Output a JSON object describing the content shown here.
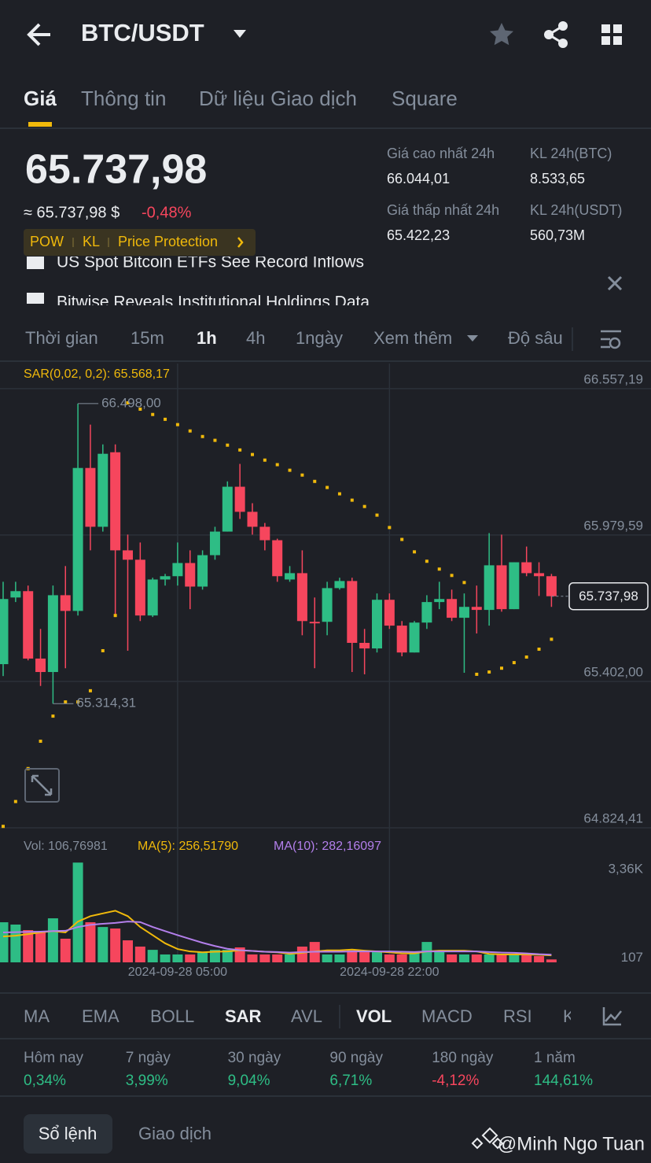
{
  "header": {
    "pair": "BTC/USDT"
  },
  "tabs": [
    {
      "label": "Giá",
      "active": true
    },
    {
      "label": "Thông tin",
      "active": false
    },
    {
      "label": "Dữ liệu Giao dịch",
      "active": false
    },
    {
      "label": "Square",
      "active": false
    }
  ],
  "price": {
    "last": "65.737,98",
    "fiat": "≈ 65.737,98 $",
    "change": "-0,48%"
  },
  "tags": [
    "POW",
    "KL",
    "Price Protection"
  ],
  "stats": [
    {
      "label": "Giá cao nhất 24h",
      "value": "66.044,01"
    },
    {
      "label": "KL 24h(BTC)",
      "value": "8.533,65"
    },
    {
      "label": "Giá thấp nhất 24h",
      "value": "65.422,23"
    },
    {
      "label": "KL 24h(USDT)",
      "value": "560,73M"
    }
  ],
  "news": [
    "US Spot Bitcoin ETFs See Record Inflows",
    "Bitwise Reveals Institutional Holdings Data"
  ],
  "intervals": [
    {
      "label": "Thời gian",
      "active": false
    },
    {
      "label": "15m",
      "active": false
    },
    {
      "label": "1h",
      "active": true
    },
    {
      "label": "4h",
      "active": false
    },
    {
      "label": "1ngày",
      "active": false
    },
    {
      "label": "Xem thêm",
      "active": false
    },
    {
      "label": "Độ sâu",
      "active": false
    }
  ],
  "chart_data": {
    "type": "candlestick",
    "indicator_label": "SAR(0,02, 0,2): 65.568,17",
    "up_color": "#2ebd85",
    "down_color": "#f6465d",
    "categories": [
      null,
      null,
      null,
      null,
      null,
      null,
      null,
      null,
      null,
      null,
      null,
      null,
      null,
      null,
      "2024-09-28 05:00",
      null,
      null,
      null,
      null,
      null,
      null,
      null,
      null,
      null,
      null,
      null,
      null,
      null,
      null,
      null,
      null,
      "2024-09-28 22:00",
      null,
      null,
      null,
      null,
      null,
      null,
      null,
      null,
      null,
      null,
      null,
      null,
      null
    ],
    "open": [
      65470,
      65733,
      65758,
      65492,
      65439,
      65742,
      65680,
      66244,
      66012,
      66306,
      65919,
      65882,
      65662,
      65804,
      65817,
      65869,
      65776,
      65900,
      65993,
      66170,
      66071,
      66012,
      65959,
      65804,
      65829,
      65637,
      65637,
      65770,
      65798,
      65554,
      65532,
      65724,
      65622,
      65516,
      65634,
      65715,
      65727,
      65653,
      65696,
      65684,
      65860,
      65687,
      65872,
      65829,
      65817
    ],
    "high": [
      65795,
      65795,
      65780,
      65609,
      65780,
      65857,
      66498.0,
      66415,
      66337,
      66337,
      65981,
      65950,
      65811,
      65826,
      65950,
      65919,
      65919,
      66012,
      66191,
      66260,
      66105,
      66027,
      65965,
      65857,
      65919,
      65733,
      65795,
      65811,
      65811,
      65609,
      65749,
      65749,
      65640,
      65640,
      65742,
      65795,
      65764,
      65749,
      65780,
      65987,
      65981,
      65872,
      65934,
      65872,
      65826
    ],
    "low": [
      65423,
      65715,
      65485,
      65384,
      65314.31,
      65454,
      65662,
      65919,
      65993,
      65656,
      65523,
      65640,
      65656,
      65780,
      65780,
      65687,
      65764,
      65882,
      65993,
      66043,
      65981,
      65919,
      65795,
      65795,
      65584,
      65454,
      65584,
      65764,
      65439,
      65430,
      65516,
      65609,
      65501,
      65516,
      65609,
      65687,
      65640,
      65436,
      65591,
      65622,
      65677,
      65687,
      65817,
      65739,
      65696
    ],
    "close": [
      65727,
      65758,
      65492,
      65439,
      65742,
      65680,
      66244,
      66012,
      66300,
      65919,
      65882,
      65662,
      65804,
      65817,
      65869,
      65776,
      65900,
      65993,
      66170,
      66071,
      66012,
      65959,
      65817,
      65829,
      65640,
      65631,
      65770,
      65798,
      65554,
      65532,
      65724,
      65622,
      65516,
      65634,
      65715,
      65727,
      65653,
      65696,
      65684,
      65860,
      65687,
      65872,
      65829,
      65817,
      65737.98
    ],
    "sar": {
      "color": "#f0b90b",
      "values": [
        64830,
        64928,
        65058,
        65166,
        65265,
        65321,
        65321,
        65365,
        65523,
        65662,
        66501,
        66476,
        66455,
        66436,
        66415,
        66390,
        66368,
        66353,
        66334,
        66315,
        66297,
        66275,
        66257,
        66235,
        66216,
        66191,
        66167,
        66142,
        66117,
        66092,
        66058,
        66009,
        65962,
        65913,
        65876,
        65845,
        65820,
        65792,
        65430,
        65439,
        65454,
        65476,
        65498,
        65529,
        65568.17
      ]
    },
    "ylim": [
      64824.41,
      66656
    ],
    "yticks": [
      {
        "value": 66557.19,
        "label": "66.557,19"
      },
      {
        "value": 65979.59,
        "label": "65.979,59"
      },
      {
        "value": 65402.0,
        "label": "65.402,00"
      },
      {
        "value": 64824.41,
        "label": "64.824,41"
      }
    ],
    "high_marker": {
      "value": 66498.0,
      "label": "66.498,00"
    },
    "low_marker": {
      "value": 65314.31,
      "label": "65.314,31"
    },
    "last_price": {
      "value": 65737.98,
      "label": "65.737,98"
    },
    "volume": {
      "label": "Vol: 106,76981",
      "values": [
        1475,
        1390,
        1185,
        1100,
        1620,
        870,
        3670,
        1475,
        1300,
        1245,
        810,
        580,
        460,
        290,
        290,
        290,
        375,
        460,
        460,
        550,
        290,
        290,
        290,
        290,
        580,
        750,
        290,
        290,
        435,
        375,
        375,
        290,
        290,
        375,
        750,
        435,
        290,
        290,
        290,
        290,
        290,
        290,
        290,
        230,
        106.76981
      ],
      "ylim": [
        0,
        3850
      ],
      "yticks": [
        {
          "value": 3360,
          "label": "3,36K"
        },
        107
      ],
      "ma": [
        {
          "name": "MA(5): 256,51790",
          "color": "#f0b90b",
          "values": [
            950,
            980,
            1040,
            1100,
            1150,
            1100,
            1500,
            1700,
            1800,
            1900,
            1700,
            1300,
            1000,
            700,
            490,
            400,
            370,
            390,
            400,
            440,
            420,
            390,
            370,
            310,
            350,
            400,
            440,
            440,
            470,
            430,
            400,
            370,
            330,
            330,
            400,
            430,
            430,
            430,
            400,
            310,
            290,
            290,
            290,
            280,
            256.5179
          ]
        },
        {
          "name": "MA(10): 282,16097",
          "color": "#b37feb",
          "values": [
            1100,
            1110,
            1120,
            1130,
            1150,
            1160,
            1300,
            1380,
            1420,
            1450,
            1500,
            1480,
            1300,
            1150,
            1000,
            860,
            720,
            600,
            500,
            450,
            420,
            390,
            380,
            360,
            380,
            390,
            390,
            390,
            400,
            400,
            400,
            400,
            390,
            380,
            400,
            400,
            400,
            400,
            400,
            380,
            360,
            350,
            330,
            300,
            282.16097
          ]
        }
      ]
    }
  },
  "indicators": [
    {
      "label": "MA",
      "active": false
    },
    {
      "label": "EMA",
      "active": false
    },
    {
      "label": "BOLL",
      "active": false
    },
    {
      "label": "SAR",
      "active": true
    },
    {
      "label": "AVL",
      "active": false
    },
    {
      "label": "VOL",
      "active": true
    },
    {
      "label": "MACD",
      "active": false
    },
    {
      "label": "RSI",
      "active": false
    },
    {
      "label": "K",
      "active": false
    }
  ],
  "performance": [
    {
      "label": "Hôm nay",
      "value": "0,34%"
    },
    {
      "label": "7 ngày",
      "value": "3,99%"
    },
    {
      "label": "30 ngày",
      "value": "9,04%"
    },
    {
      "label": "90 ngày",
      "value": "6,71%"
    },
    {
      "label": "180 ngày",
      "value": "-4,12%"
    },
    {
      "label": "1 năm",
      "value": "144,61%"
    }
  ],
  "footer": {
    "buttons": [
      "Sổ lệnh",
      "Giao dịch"
    ],
    "watermark": "@Minh Ngo Tuan"
  }
}
